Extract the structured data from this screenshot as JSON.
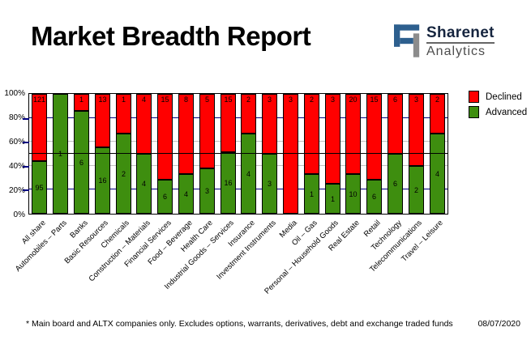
{
  "header": {
    "title": "Market Breadth Report",
    "logo": {
      "brand": "Sharenet",
      "sub": "Analytics",
      "blue": "#2d5f8e",
      "gray": "#8c8c8c"
    }
  },
  "chart_data": {
    "type": "bar",
    "stacking": "percent",
    "title": "Market Breadth Report",
    "categories": [
      "All share",
      "Automobiles – Parts",
      "Banks",
      "Basic Resources",
      "Chemicals",
      "Construction – Materials",
      "Financial Services",
      "Food – Beverage",
      "Health Care",
      "Industrial Goods – Services",
      "Insurance",
      "Investment Instruments",
      "Media",
      "Oil – Gas",
      "Personal – Household Goods",
      "Real Estate",
      "Retail",
      "Technology",
      "Telecommunications",
      "Travel – Leisure"
    ],
    "series": [
      {
        "name": "Declined",
        "color": "#ff0000",
        "values": [
          121,
          0,
          1,
          13,
          1,
          4,
          15,
          8,
          5,
          15,
          2,
          3,
          3,
          2,
          3,
          20,
          15,
          6,
          3,
          2
        ]
      },
      {
        "name": "Advanced",
        "color": "#3e8e0f",
        "values": [
          95,
          1,
          6,
          16,
          2,
          4,
          6,
          4,
          3,
          16,
          4,
          3,
          0,
          1,
          1,
          10,
          6,
          6,
          2,
          4
        ]
      }
    ],
    "ylim": [
      0,
      100
    ],
    "y_ticks": [
      "100%",
      "80%",
      "60%",
      "40%",
      "20%",
      "0%"
    ],
    "gridlines": [
      {
        "pct": 20,
        "color": "#000080"
      },
      {
        "pct": 40,
        "color": "#c0c0c0"
      },
      {
        "pct": 60,
        "color": "#c0c0c0"
      },
      {
        "pct": 80,
        "color": "#000080"
      }
    ],
    "reference_line_pct": 50,
    "legend_position": "top-right",
    "grid": true
  },
  "footer": {
    "note": "* Main board and ALTX companies only. Excludes options, warrants, derivatives, debt and exchange traded funds",
    "date": "08/07/2020"
  }
}
